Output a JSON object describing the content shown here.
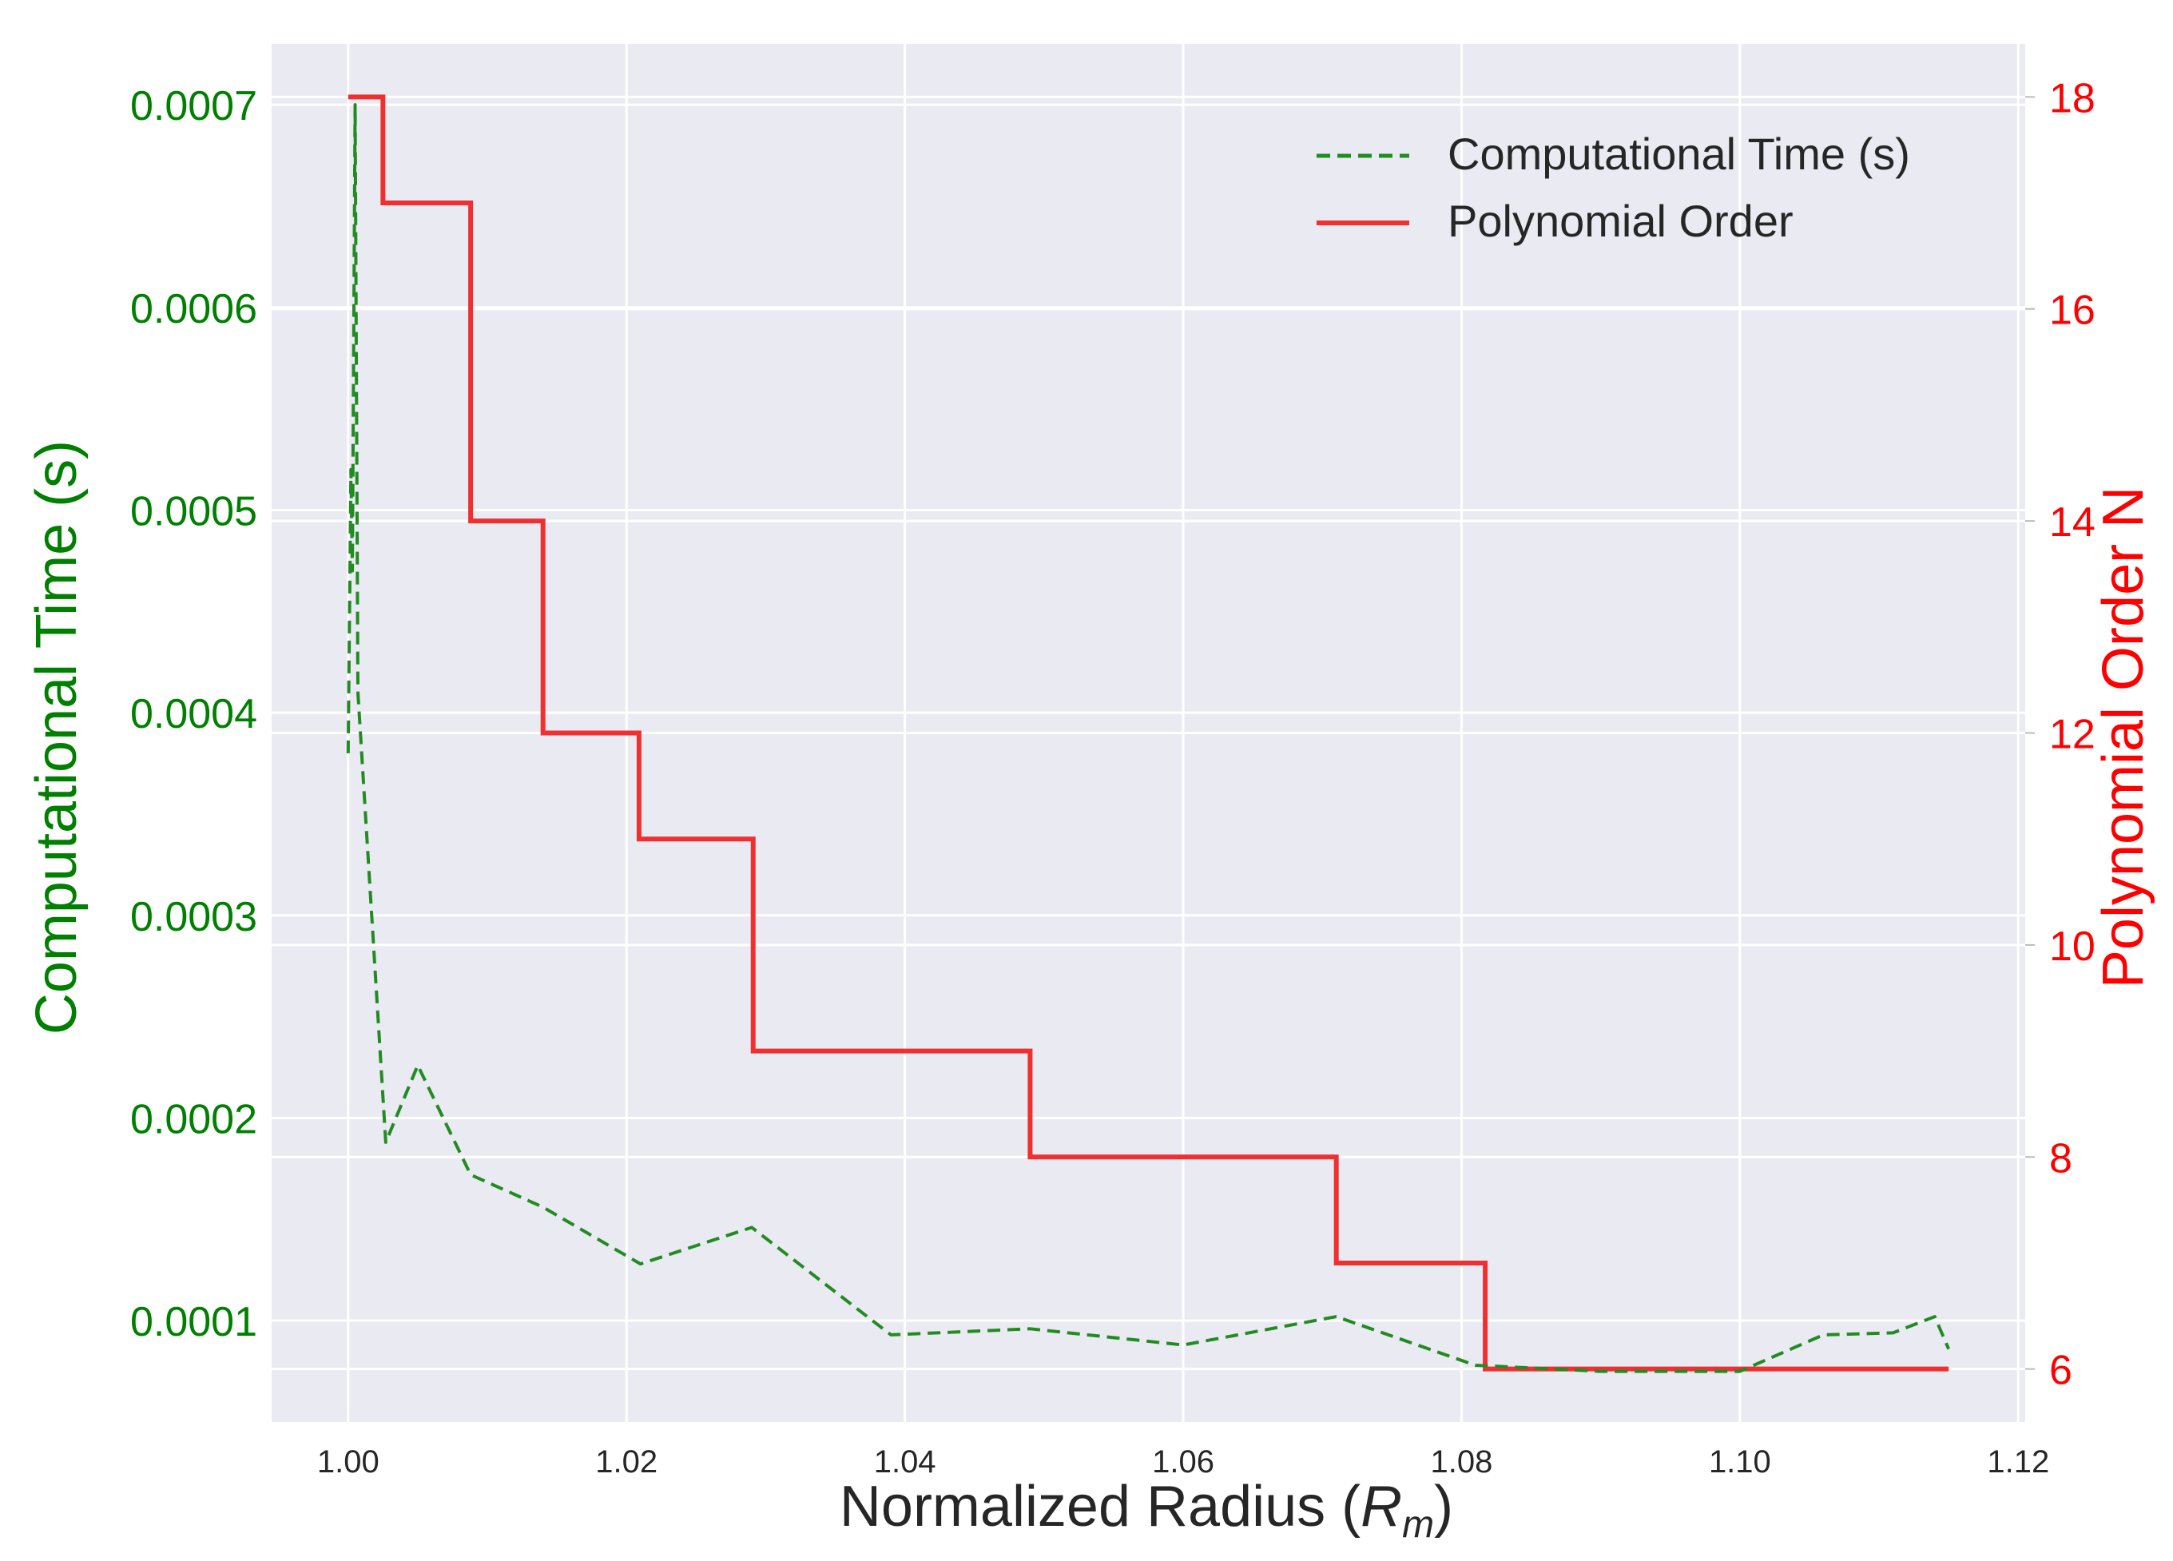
{
  "chart_data": {
    "type": "line",
    "title": "",
    "xlabel": "Normalized Radius (",
    "xlabel_symbol": "R",
    "xlabel_subscript": "m",
    "xlabel_close": ")",
    "ylabel_left": "Computational Time (s)",
    "ylabel_right": "Polynomial Order N",
    "xlim": [
      0.9945,
      1.1205
    ],
    "ylim_left": [
      5e-05,
      0.00073
    ],
    "ylim_right": [
      5.5,
      18.5
    ],
    "grid": true,
    "legend_position": "top-right",
    "x_ticks": [
      1.0,
      1.02,
      1.04,
      1.06,
      1.08,
      1.1,
      1.12
    ],
    "x_tick_labels": [
      "1.00",
      "1.02",
      "1.04",
      "1.06",
      "1.08",
      "1.10",
      "1.12"
    ],
    "y_left_ticks": [
      0.0001,
      0.0002,
      0.0003,
      0.0004,
      0.0005,
      0.0006,
      0.0007
    ],
    "y_left_tick_labels": [
      "0.0001",
      "0.0002",
      "0.0003",
      "0.0004",
      "0.0005",
      "0.0006",
      "0.0007"
    ],
    "y_right_ticks": [
      6,
      8,
      10,
      12,
      14,
      16,
      18
    ],
    "y_right_tick_labels": [
      "6",
      "8",
      "10",
      "12",
      "14",
      "16",
      "18"
    ],
    "colors": {
      "plot_background": "#eaeaf2",
      "grid": "#ffffff",
      "left_axis": "#008000",
      "right_axis": "#ff0000",
      "time_series": "#228b22",
      "order_series": "#f03030",
      "x_axis_text": "#262626"
    },
    "series": [
      {
        "name": "Computational Time (s)",
        "axis": "left",
        "style": "dashed",
        "x": [
          1.0,
          1.0002,
          1.0003,
          1.0005,
          1.0007,
          1.0027,
          1.005,
          1.0088,
          1.014,
          1.021,
          1.029,
          1.039,
          1.049,
          1.06,
          1.071,
          1.081,
          1.09,
          1.1,
          1.106,
          1.111,
          1.114,
          1.115
        ],
        "y": [
          0.00038,
          0.00052,
          0.00047,
          0.0007,
          0.00041,
          0.000188,
          0.000226,
          0.000172,
          0.000156,
          0.000128,
          0.000146,
          9.3e-05,
          9.6e-05,
          8.8e-05,
          0.000102,
          7.8e-05,
          7.5e-05,
          7.5e-05,
          9.3e-05,
          9.4e-05,
          0.000102,
          8.6e-05
        ]
      },
      {
        "name": "Polynomial Order",
        "axis": "right",
        "style": "solid",
        "drawstyle": "steps-post",
        "x": [
          1.0,
          1.0025,
          1.0088,
          1.014,
          1.0209,
          1.0291,
          1.049,
          1.071,
          1.0817,
          1.115
        ],
        "y": [
          18,
          17,
          14,
          12,
          11,
          9,
          8,
          7,
          6,
          6
        ]
      }
    ]
  }
}
